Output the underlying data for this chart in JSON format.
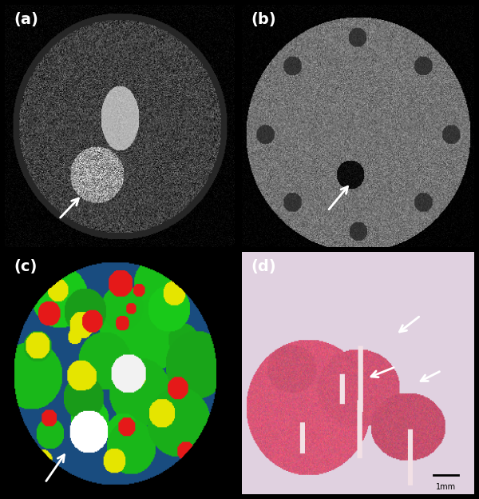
{
  "figure_size": [
    6.0,
    6.24
  ],
  "dpi": 100,
  "background_color": "#000000",
  "panel_labels": [
    "(a)",
    "(b)",
    "(c)",
    "(d)"
  ],
  "label_color": "#ffffff",
  "label_fontsize": 14,
  "label_fontweight": "bold",
  "panel_d_bg": "#d8d8e8",
  "scalebar_text": "1mm",
  "arrow_color": "#ffffff"
}
